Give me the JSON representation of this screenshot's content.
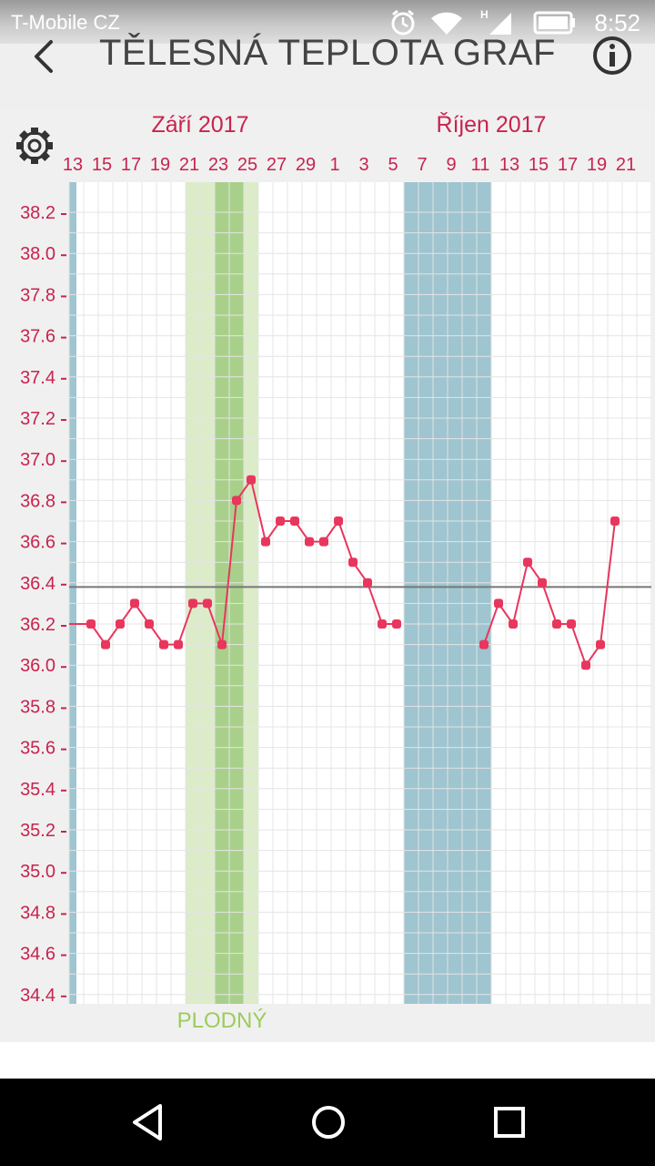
{
  "status_bar": {
    "carrier": "T-Mobile CZ",
    "time": "8:52",
    "icons": [
      "alarm-icon",
      "wifi-icon",
      "signal-icon",
      "battery-icon"
    ]
  },
  "app_bar": {
    "title": "TĚLESNÁ TEPLOTA GRAF",
    "back_icon": "chevron-left-icon",
    "info_icon": "info-icon"
  },
  "settings_icon": "gear-icon",
  "chart_data": {
    "type": "line",
    "months": [
      {
        "label": "Září 2017",
        "start_date": "2017-09-13"
      },
      {
        "label": "Říjen 2017",
        "start_date": "2017-10-01"
      }
    ],
    "x_tick_labels": [
      "13",
      "15",
      "17",
      "19",
      "21",
      "23",
      "25",
      "27",
      "29",
      "1",
      "3",
      "5",
      "7",
      "9",
      "11",
      "13",
      "15",
      "17",
      "19",
      "21"
    ],
    "x_start": "2017-09-13",
    "x_end": "2017-10-21",
    "y_tick_labels": [
      "38.2",
      "38.0",
      "37.8",
      "37.6",
      "37.4",
      "37.2",
      "37.0",
      "36.8",
      "36.6",
      "36.4",
      "36.2",
      "36.0",
      "35.8",
      "35.6",
      "35.4",
      "35.2",
      "35.0",
      "34.8",
      "34.6",
      "34.4"
    ],
    "ylim": [
      34.4,
      38.2
    ],
    "series": [
      {
        "color": "#e8365d",
        "points": [
          {
            "x": "2017-09-13",
            "y": 36.2
          },
          {
            "x": "2017-09-14",
            "y": 36.2
          },
          {
            "x": "2017-09-15",
            "y": 36.1
          },
          {
            "x": "2017-09-16",
            "y": 36.2
          },
          {
            "x": "2017-09-17",
            "y": 36.3
          },
          {
            "x": "2017-09-18",
            "y": 36.2
          },
          {
            "x": "2017-09-19",
            "y": 36.1
          },
          {
            "x": "2017-09-20",
            "y": 36.1
          },
          {
            "x": "2017-09-21",
            "y": 36.3
          },
          {
            "x": "2017-09-22",
            "y": 36.3
          },
          {
            "x": "2017-09-23",
            "y": 36.1
          },
          {
            "x": "2017-09-24",
            "y": 36.8
          },
          {
            "x": "2017-09-25",
            "y": 36.9
          },
          {
            "x": "2017-09-26",
            "y": 36.6
          },
          {
            "x": "2017-09-27",
            "y": 36.7
          },
          {
            "x": "2017-09-28",
            "y": 36.7
          },
          {
            "x": "2017-09-29",
            "y": 36.6
          },
          {
            "x": "2017-09-30",
            "y": 36.6
          },
          {
            "x": "2017-10-01",
            "y": 36.7
          },
          {
            "x": "2017-10-02",
            "y": 36.5
          },
          {
            "x": "2017-10-03",
            "y": 36.4
          },
          {
            "x": "2017-10-04",
            "y": 36.2
          },
          {
            "x": "2017-10-05",
            "y": 36.2
          },
          {
            "x": "2017-10-11",
            "y": 36.1
          },
          {
            "x": "2017-10-12",
            "y": 36.3
          },
          {
            "x": "2017-10-13",
            "y": 36.2
          },
          {
            "x": "2017-10-14",
            "y": 36.5
          },
          {
            "x": "2017-10-15",
            "y": 36.4
          },
          {
            "x": "2017-10-16",
            "y": 36.2
          },
          {
            "x": "2017-10-17",
            "y": 36.2
          },
          {
            "x": "2017-10-18",
            "y": 36.0
          },
          {
            "x": "2017-10-19",
            "y": 36.1
          },
          {
            "x": "2017-10-20",
            "y": 36.7
          }
        ]
      }
    ],
    "reference_line": {
      "y": 36.38,
      "color": "#777777"
    },
    "bands": [
      {
        "type": "period",
        "from": "2017-09-13",
        "to": "2017-09-13",
        "color": "#9ec5d0"
      },
      {
        "type": "fertile",
        "from": "2017-09-21",
        "to": "2017-09-25",
        "color": "#dcecc9",
        "peak_from": "2017-09-23",
        "peak_to": "2017-09-24",
        "peak_color": "#a9d08a"
      },
      {
        "type": "period",
        "from": "2017-10-06",
        "to": "2017-10-11",
        "color": "#9ec5d0"
      }
    ],
    "fertile_label": "PLODNÝ",
    "label_color": "#c8234e",
    "grid": true
  }
}
